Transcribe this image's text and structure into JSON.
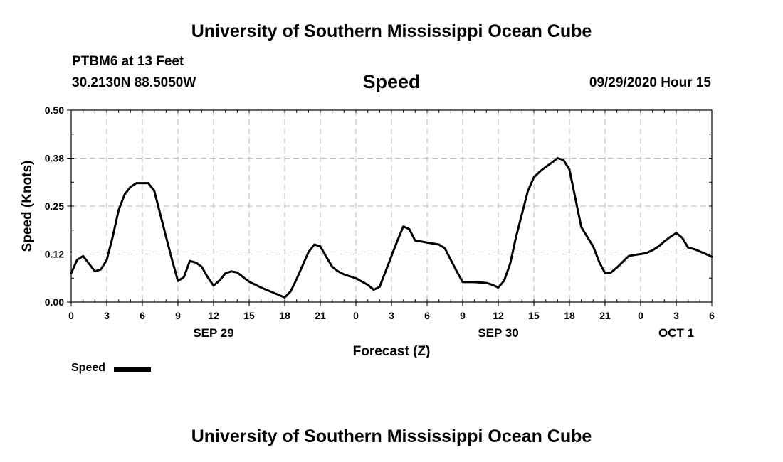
{
  "header": {
    "title_top": "University of Southern Mississippi Ocean Cube",
    "station": "PTBM6 at 13 Feet",
    "coords": "30.2130N 88.5050W",
    "timestamp": "09/29/2020 Hour 15",
    "title_bottom": "University of Southern Mississippi Ocean Cube"
  },
  "legend": {
    "label": "Speed"
  },
  "chart_data": {
    "type": "line",
    "title": "Speed",
    "xlabel": "Forecast (Z)",
    "ylabel": "Speed (Knots)",
    "ylim": [
      0,
      0.5
    ],
    "yticks": [
      0.0,
      0.125,
      0.25,
      0.375,
      0.5
    ],
    "ytick_labels": [
      "0.00",
      "0.12",
      "0.25",
      "0.38",
      "0.50"
    ],
    "xlim": [
      0,
      54
    ],
    "xticks": [
      0,
      3,
      6,
      9,
      12,
      15,
      18,
      21,
      24,
      27,
      30,
      33,
      36,
      39,
      42,
      45,
      48,
      51,
      54
    ],
    "xtick_labels": [
      "0",
      "3",
      "6",
      "9",
      "12",
      "15",
      "18",
      "21",
      "0",
      "3",
      "6",
      "9",
      "12",
      "15",
      "18",
      "21",
      "0",
      "3",
      "6"
    ],
    "date_labels": [
      {
        "hour": 12,
        "label": "SEP 29"
      },
      {
        "hour": 36,
        "label": "SEP 30"
      },
      {
        "hour": 51,
        "label": "OCT 1"
      }
    ],
    "grid": true,
    "legend_position": "bottom-left",
    "color": "#000000",
    "series": [
      {
        "name": "Speed",
        "x": [
          0,
          0.5,
          1,
          1.5,
          2,
          2.5,
          3,
          3.5,
          4,
          4.5,
          5,
          5.5,
          6,
          6.5,
          7,
          7.5,
          8,
          8.5,
          9,
          9.5,
          10,
          10.5,
          11,
          11.5,
          12,
          12.5,
          13,
          13.5,
          14,
          14.5,
          15,
          16,
          17,
          18,
          18.5,
          19,
          19.5,
          20,
          20.5,
          21,
          21.5,
          22,
          22.5,
          23,
          24,
          25,
          25.5,
          26,
          26.5,
          27,
          27.5,
          28,
          28.5,
          29,
          29.5,
          30,
          31,
          31.5,
          32,
          32.5,
          33,
          34,
          35,
          35.5,
          36,
          36.5,
          37,
          37.5,
          38,
          38.5,
          39,
          39.5,
          40,
          40.5,
          41,
          41.5,
          42,
          42.5,
          43,
          43.5,
          44,
          44.5,
          45,
          45.5,
          46,
          46.5,
          47,
          47.5,
          48,
          48.5,
          49,
          49.5,
          50,
          50.5,
          51,
          51.5,
          52,
          52.5,
          53,
          53.5,
          54
        ],
        "y": [
          0.075,
          0.11,
          0.12,
          0.1,
          0.08,
          0.085,
          0.11,
          0.17,
          0.24,
          0.28,
          0.3,
          0.31,
          0.31,
          0.31,
          0.29,
          0.23,
          0.17,
          0.11,
          0.055,
          0.065,
          0.107,
          0.103,
          0.092,
          0.065,
          0.043,
          0.056,
          0.075,
          0.08,
          0.077,
          0.065,
          0.053,
          0.038,
          0.025,
          0.012,
          0.028,
          0.06,
          0.095,
          0.13,
          0.15,
          0.145,
          0.118,
          0.092,
          0.08,
          0.072,
          0.062,
          0.045,
          0.032,
          0.04,
          0.08,
          0.12,
          0.16,
          0.197,
          0.19,
          0.16,
          0.158,
          0.155,
          0.15,
          0.14,
          0.11,
          0.08,
          0.052,
          0.052,
          0.05,
          0.045,
          0.038,
          0.056,
          0.1,
          0.17,
          0.23,
          0.29,
          0.325,
          0.34,
          0.352,
          0.363,
          0.375,
          0.37,
          0.345,
          0.27,
          0.195,
          0.17,
          0.145,
          0.105,
          0.075,
          0.077,
          0.09,
          0.105,
          0.12,
          0.123,
          0.125,
          0.128,
          0.135,
          0.145,
          0.158,
          0.17,
          0.18,
          0.168,
          0.142,
          0.138,
          0.132,
          0.125,
          0.118
        ]
      }
    ]
  }
}
